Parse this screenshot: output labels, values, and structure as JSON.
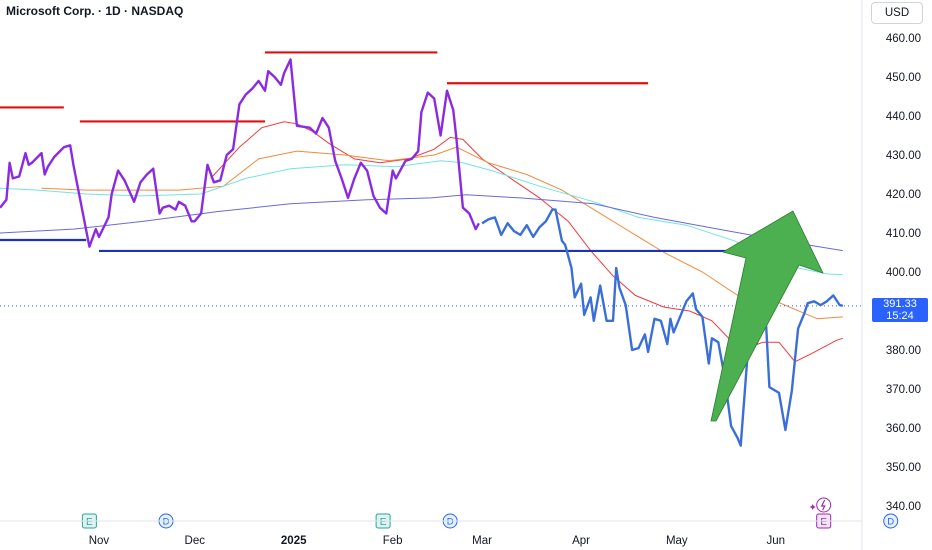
{
  "header": {
    "title": "Microsoft Corp. · 1D · NASDAQ",
    "currency": "USD"
  },
  "price_tag": {
    "value": "391.33",
    "countdown": "15:24"
  },
  "colors": {
    "price_line_purple": "#8a2be2",
    "price_line_blue": "#3b6fd8",
    "resistance_red": "#e01010",
    "support_blue": "#1e32b4",
    "ma_red": "#f23a3a",
    "ma_orange": "#f08a3c",
    "ma_cyan": "#72e3e8",
    "ma_slate": "#6a6ad6",
    "arrow_green": "#4caf50",
    "arrow_stroke": "#2e7d32",
    "last_price": "#2962ff"
  },
  "chart_data": {
    "type": "line",
    "title": "Microsoft Corp. · 1D · NASDAQ",
    "ylabel": "",
    "xlabel": "",
    "currency": "USD",
    "ylim": [
      337,
      465
    ],
    "y_ticks": [
      "460.00",
      "450.00",
      "440.00",
      "430.00",
      "420.00",
      "410.00",
      "400.00",
      "390.00",
      "380.00",
      "370.00",
      "360.00",
      "350.00",
      "340.00"
    ],
    "y_tick_values": [
      460,
      450,
      440,
      430,
      420,
      410,
      400,
      390,
      380,
      370,
      360,
      350,
      340
    ],
    "x_ticks": [
      "Nov",
      "Dec",
      "2025",
      "Feb",
      "Mar",
      "Apr",
      "May",
      "Jun"
    ],
    "x_tick_dates": [
      "2024-11-01",
      "2024-12-01",
      "2025-01-01",
      "2025-02-01",
      "2025-03-01",
      "2025-04-01",
      "2025-05-01",
      "2025-06-01"
    ],
    "x_range": [
      "2024-10-01",
      "2025-06-28"
    ],
    "last_price": 391.33,
    "series": [
      {
        "role": "price",
        "points": [
          [
            "2024-10-01",
            416.5
          ],
          [
            "2024-10-03",
            418.5
          ],
          [
            "2024-10-04",
            428
          ],
          [
            "2024-10-05",
            424
          ],
          [
            "2024-10-07",
            424.5
          ],
          [
            "2024-10-09",
            430.5
          ],
          [
            "2024-10-10",
            427.5
          ],
          [
            "2024-10-11",
            428
          ],
          [
            "2024-10-14",
            430.5
          ],
          [
            "2024-10-15",
            425
          ],
          [
            "2024-10-16",
            427
          ],
          [
            "2024-10-18",
            429.5
          ],
          [
            "2024-10-21",
            432
          ],
          [
            "2024-10-23",
            432.5
          ],
          [
            "2024-10-24",
            427.5
          ],
          [
            "2024-10-29",
            406.5
          ],
          [
            "2024-10-31",
            411
          ],
          [
            "2024-11-01",
            409
          ],
          [
            "2024-11-04",
            414
          ],
          [
            "2024-11-05",
            420
          ],
          [
            "2024-11-07",
            426
          ],
          [
            "2024-11-09",
            423.5
          ],
          [
            "2024-11-12",
            418
          ],
          [
            "2024-11-14",
            423
          ],
          [
            "2024-11-16",
            425
          ],
          [
            "2024-11-18",
            426.5
          ],
          [
            "2024-11-20",
            415
          ],
          [
            "2024-11-21",
            416.5
          ],
          [
            "2024-11-23",
            417
          ],
          [
            "2024-11-25",
            416
          ],
          [
            "2024-11-26",
            418
          ],
          [
            "2024-11-28",
            417
          ],
          [
            "2024-11-30",
            413
          ],
          [
            "2024-12-01",
            413
          ],
          [
            "2024-12-03",
            415
          ],
          [
            "2024-12-05",
            427.5
          ],
          [
            "2024-12-07",
            423
          ],
          [
            "2024-12-09",
            423.5
          ],
          [
            "2024-12-11",
            430
          ],
          [
            "2024-12-13",
            431.5
          ],
          [
            "2024-12-15",
            443
          ],
          [
            "2024-12-17",
            445.5
          ],
          [
            "2024-12-19",
            447
          ],
          [
            "2024-12-21",
            449
          ],
          [
            "2024-12-23",
            446.5
          ],
          [
            "2024-12-24",
            451.5
          ],
          [
            "2024-12-26",
            450
          ],
          [
            "2024-12-28",
            448
          ],
          [
            "2024-12-29",
            451
          ],
          [
            "2024-12-31",
            454.5
          ],
          [
            "2025-01-02",
            437.5
          ],
          [
            "2025-01-06",
            437
          ],
          [
            "2025-01-08",
            435.5
          ],
          [
            "2025-01-10",
            439.5
          ],
          [
            "2025-01-12",
            437
          ],
          [
            "2025-01-14",
            428.5
          ],
          [
            "2025-01-16",
            424
          ],
          [
            "2025-01-18",
            419
          ],
          [
            "2025-01-20",
            424
          ],
          [
            "2025-01-22",
            428
          ],
          [
            "2025-01-24",
            426
          ],
          [
            "2025-01-26",
            419.5
          ],
          [
            "2025-01-28",
            416.5
          ],
          [
            "2025-01-30",
            415
          ],
          [
            "2025-02-01",
            426
          ],
          [
            "2025-02-02",
            424
          ],
          [
            "2025-02-05",
            428.5
          ],
          [
            "2025-02-07",
            429
          ],
          [
            "2025-02-09",
            431
          ],
          [
            "2025-02-10",
            441
          ],
          [
            "2025-02-12",
            446
          ],
          [
            "2025-02-14",
            444.5
          ],
          [
            "2025-02-16",
            435
          ],
          [
            "2025-02-18",
            446.5
          ],
          [
            "2025-02-20",
            441.5
          ],
          [
            "2025-02-21",
            434
          ],
          [
            "2025-02-23",
            416.5
          ],
          [
            "2025-02-25",
            415
          ],
          [
            "2025-02-27",
            411
          ],
          [
            "2025-02-28",
            412.5
          ]
        ]
      },
      {
        "role": "price",
        "points": [
          [
            "2025-03-01",
            412.5
          ],
          [
            "2025-03-03",
            413.5
          ],
          [
            "2025-03-05",
            414
          ],
          [
            "2025-03-07",
            409.5
          ],
          [
            "2025-03-09",
            412.5
          ],
          [
            "2025-03-11",
            410.5
          ],
          [
            "2025-03-13",
            409.5
          ],
          [
            "2025-03-15",
            412
          ],
          [
            "2025-03-17",
            409
          ],
          [
            "2025-03-19",
            411.5
          ],
          [
            "2025-03-21",
            413
          ],
          [
            "2025-03-23",
            416
          ],
          [
            "2025-03-24",
            416
          ],
          [
            "2025-03-26",
            408
          ],
          [
            "2025-03-27",
            407
          ],
          [
            "2025-03-29",
            401
          ],
          [
            "2025-03-30",
            393.5
          ],
          [
            "2025-04-01",
            397
          ],
          [
            "2025-04-02",
            389
          ],
          [
            "2025-04-04",
            393.5
          ],
          [
            "2025-04-05",
            387.5
          ],
          [
            "2025-04-07",
            396.5
          ],
          [
            "2025-04-09",
            387.5
          ],
          [
            "2025-04-11",
            387.5
          ],
          [
            "2025-04-12",
            401
          ],
          [
            "2025-04-13",
            396
          ],
          [
            "2025-04-15",
            391.5
          ],
          [
            "2025-04-17",
            380
          ],
          [
            "2025-04-19",
            380.5
          ],
          [
            "2025-04-21",
            384
          ],
          [
            "2025-04-22",
            379.5
          ],
          [
            "2025-04-24",
            388
          ],
          [
            "2025-04-26",
            387.5
          ],
          [
            "2025-04-28",
            381.5
          ],
          [
            "2025-04-29",
            388
          ],
          [
            "2025-04-30",
            384.5
          ],
          [
            "2025-05-02",
            388.5
          ],
          [
            "2025-05-04",
            392.5
          ],
          [
            "2025-05-06",
            394.5
          ],
          [
            "2025-05-07",
            390.5
          ],
          [
            "2025-05-09",
            388.5
          ],
          [
            "2025-05-11",
            376.5
          ],
          [
            "2025-05-12",
            383
          ],
          [
            "2025-05-14",
            382
          ],
          [
            "2025-05-16",
            373
          ],
          [
            "2025-05-18",
            360.5
          ],
          [
            "2025-05-20",
            357.5
          ],
          [
            "2025-05-21",
            355.5
          ],
          [
            "2025-05-24",
            388
          ],
          [
            "2025-05-26",
            381.5
          ],
          [
            "2025-05-28",
            387
          ],
          [
            "2025-05-29",
            386
          ],
          [
            "2025-05-30",
            370.5
          ],
          [
            "2025-06-02",
            369
          ],
          [
            "2025-06-04",
            359.5
          ],
          [
            "2025-06-06",
            369.5
          ],
          [
            "2025-06-08",
            385.5
          ],
          [
            "2025-06-10",
            389.5
          ],
          [
            "2025-06-11",
            392
          ],
          [
            "2025-06-13",
            392.5
          ],
          [
            "2025-06-15",
            391.5
          ],
          [
            "2025-06-17",
            392.5
          ],
          [
            "2025-06-19",
            394
          ],
          [
            "2025-06-21",
            391.5
          ],
          [
            "2025-06-22",
            391.33
          ]
        ]
      },
      {
        "role": "moving-average-red",
        "points": [
          [
            "2024-12-06",
            424
          ],
          [
            "2024-12-15",
            432
          ],
          [
            "2024-12-22",
            437
          ],
          [
            "2024-12-29",
            438.5
          ],
          [
            "2025-01-02",
            438
          ],
          [
            "2025-01-07",
            436
          ],
          [
            "2025-01-12",
            433
          ],
          [
            "2025-01-20",
            429
          ],
          [
            "2025-01-28",
            428
          ],
          [
            "2025-02-06",
            429
          ],
          [
            "2025-02-14",
            431.5
          ],
          [
            "2025-02-19",
            434.5
          ],
          [
            "2025-02-23",
            434
          ],
          [
            "2025-03-01",
            429
          ],
          [
            "2025-03-10",
            424
          ],
          [
            "2025-03-19",
            419
          ],
          [
            "2025-03-28",
            413
          ],
          [
            "2025-04-04",
            405.5
          ],
          [
            "2025-04-11",
            399
          ],
          [
            "2025-04-18",
            394
          ],
          [
            "2025-04-27",
            391
          ],
          [
            "2025-05-05",
            390
          ],
          [
            "2025-05-12",
            387.5
          ],
          [
            "2025-05-19",
            381.5
          ],
          [
            "2025-05-23",
            380.5
          ],
          [
            "2025-05-28",
            382
          ],
          [
            "2025-06-02",
            382
          ],
          [
            "2025-06-07",
            377
          ],
          [
            "2025-06-12",
            379
          ],
          [
            "2025-06-20",
            382.5
          ],
          [
            "2025-06-22",
            383
          ]
        ]
      },
      {
        "role": "moving-average-orange",
        "points": [
          [
            "2024-10-14",
            421.5
          ],
          [
            "2024-10-28",
            421
          ],
          [
            "2024-11-11",
            421
          ],
          [
            "2024-11-26",
            421
          ],
          [
            "2024-12-10",
            422
          ],
          [
            "2024-12-21",
            429
          ],
          [
            "2025-01-02",
            431
          ],
          [
            "2025-01-17",
            430
          ],
          [
            "2025-01-31",
            428.5
          ],
          [
            "2025-02-14",
            430
          ],
          [
            "2025-02-21",
            432
          ],
          [
            "2025-03-03",
            428
          ],
          [
            "2025-03-15",
            425
          ],
          [
            "2025-03-26",
            421
          ],
          [
            "2025-04-05",
            416
          ],
          [
            "2025-04-17",
            410
          ],
          [
            "2025-04-27",
            405
          ],
          [
            "2025-05-09",
            400
          ],
          [
            "2025-05-21",
            393.5
          ],
          [
            "2025-06-01",
            392.5
          ],
          [
            "2025-06-14",
            388
          ],
          [
            "2025-06-22",
            388.5
          ]
        ]
      },
      {
        "role": "moving-average-cyan",
        "points": [
          [
            "2024-10-01",
            421.5
          ],
          [
            "2024-10-13",
            421
          ],
          [
            "2024-10-28",
            420
          ],
          [
            "2024-11-14",
            419.5
          ],
          [
            "2024-12-03",
            420
          ],
          [
            "2024-12-17",
            424
          ],
          [
            "2024-12-31",
            426.5
          ],
          [
            "2025-01-17",
            427.5
          ],
          [
            "2025-02-02",
            427
          ],
          [
            "2025-02-16",
            428.5
          ],
          [
            "2025-02-23",
            428
          ],
          [
            "2025-03-04",
            426
          ],
          [
            "2025-03-19",
            422
          ],
          [
            "2025-04-05",
            418
          ],
          [
            "2025-04-19",
            414
          ],
          [
            "2025-05-04",
            412
          ],
          [
            "2025-05-19",
            408
          ],
          [
            "2025-06-02",
            402
          ],
          [
            "2025-06-17",
            399.5
          ],
          [
            "2025-06-22",
            399.3
          ]
        ]
      },
      {
        "role": "moving-average-slate",
        "points": [
          [
            "2024-10-01",
            410
          ],
          [
            "2024-10-24",
            411
          ],
          [
            "2024-11-15",
            413
          ],
          [
            "2024-12-08",
            415.5
          ],
          [
            "2024-12-31",
            417.5
          ],
          [
            "2025-01-24",
            418.5
          ],
          [
            "2025-02-13",
            419
          ],
          [
            "2025-02-24",
            419.8
          ],
          [
            "2025-03-13",
            419
          ],
          [
            "2025-04-05",
            417.5
          ],
          [
            "2025-04-24",
            414
          ],
          [
            "2025-05-14",
            411
          ],
          [
            "2025-06-03",
            408
          ],
          [
            "2025-06-22",
            405.5
          ]
        ]
      }
    ],
    "horizontal_levels": [
      {
        "role": "resistance",
        "color": "red",
        "value": 442.2,
        "from": "2024-10-01",
        "to": "2024-10-21"
      },
      {
        "role": "resistance",
        "color": "red",
        "value": 438.6,
        "from": "2024-10-26",
        "to": "2024-12-23"
      },
      {
        "role": "resistance",
        "color": "red",
        "value": 456.3,
        "from": "2024-12-23",
        "to": "2025-02-15"
      },
      {
        "role": "resistance",
        "color": "red",
        "value": 448.4,
        "from": "2025-02-18",
        "to": "2025-04-22"
      },
      {
        "role": "support",
        "color": "blue",
        "value": 408.2,
        "from": "2024-10-01",
        "to": "2024-10-28"
      },
      {
        "role": "support",
        "color": "blue",
        "value": 405.4,
        "from": "2024-11-01",
        "to": "2025-05-24"
      }
    ],
    "event_markers": [
      {
        "label": "E",
        "date": "2024-10-29",
        "kind": "earnings"
      },
      {
        "label": "D",
        "date": "2024-11-22",
        "kind": "dividend"
      },
      {
        "label": "E",
        "date": "2025-01-29",
        "kind": "earnings"
      },
      {
        "label": "D",
        "date": "2025-02-19",
        "kind": "dividend"
      },
      {
        "label": "E",
        "date": "2025-06-16",
        "kind": "earnings-upcoming"
      },
      {
        "label": "D",
        "date": "2025-07-07",
        "kind": "dividend-upcoming"
      }
    ],
    "annotation": {
      "kind": "up-arrow",
      "color": "green"
    },
    "grid": false,
    "legend": "none"
  }
}
